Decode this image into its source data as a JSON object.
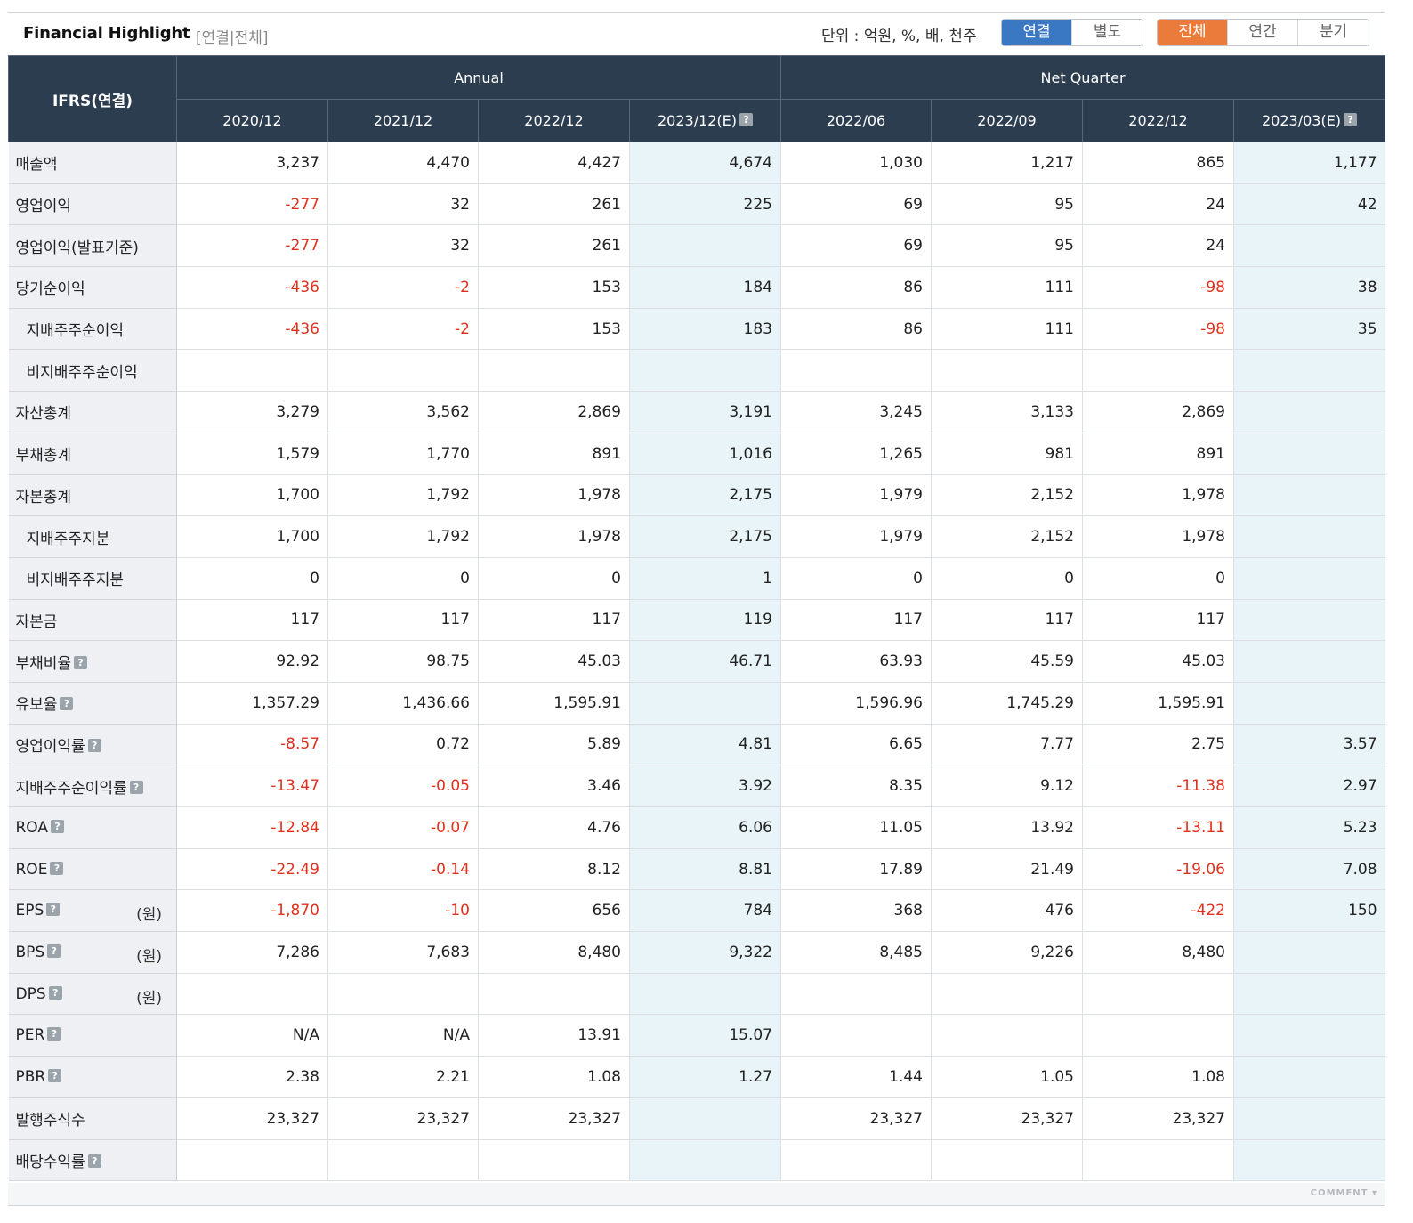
{
  "header": {
    "title": "Financial Highlight",
    "subtitle": "[연결|전체]",
    "unit_text": "단위 : 억원, %, 배, 천주",
    "scope_buttons": [
      "연결",
      "별도"
    ],
    "period_buttons": [
      "전체",
      "연간",
      "분기"
    ],
    "active_scope": "연결",
    "active_period": "전체",
    "colors": {
      "scope_active": "#3b78c3",
      "period_active": "#ea7b3a",
      "header_bg": "#2c3d50",
      "estimate_bg": "#e8f4f8",
      "negative": "#e0301e"
    }
  },
  "table": {
    "corner": "IFRS(연결)",
    "groups": [
      "Annual",
      "Net Quarter"
    ],
    "columns": [
      "2020/12",
      "2021/12",
      "2022/12",
      "2023/12(E)",
      "2022/06",
      "2022/09",
      "2022/12",
      "2023/03(E)"
    ],
    "help_icon": "?",
    "rows": [
      {
        "label": "매출액",
        "indent": false,
        "help": false,
        "unit": "",
        "values": [
          "3,237",
          "4,470",
          "4,427",
          "4,674",
          "1,030",
          "1,217",
          "865",
          "1,177"
        ]
      },
      {
        "label": "영업이익",
        "indent": false,
        "help": false,
        "unit": "",
        "values": [
          "-277",
          "32",
          "261",
          "225",
          "69",
          "95",
          "24",
          "42"
        ]
      },
      {
        "label": "영업이익(발표기준)",
        "indent": false,
        "help": false,
        "unit": "",
        "values": [
          "-277",
          "32",
          "261",
          "",
          "69",
          "95",
          "24",
          ""
        ]
      },
      {
        "label": "당기순이익",
        "indent": false,
        "help": false,
        "unit": "",
        "values": [
          "-436",
          "-2",
          "153",
          "184",
          "86",
          "111",
          "-98",
          "38"
        ]
      },
      {
        "label": "지배주주순이익",
        "indent": true,
        "help": false,
        "unit": "",
        "values": [
          "-436",
          "-2",
          "153",
          "183",
          "86",
          "111",
          "-98",
          "35"
        ]
      },
      {
        "label": "비지배주주순이익",
        "indent": true,
        "help": false,
        "unit": "",
        "values": [
          "",
          "",
          "",
          "",
          "",
          "",
          "",
          ""
        ]
      },
      {
        "label": "자산총계",
        "indent": false,
        "help": false,
        "unit": "",
        "values": [
          "3,279",
          "3,562",
          "2,869",
          "3,191",
          "3,245",
          "3,133",
          "2,869",
          ""
        ]
      },
      {
        "label": "부채총계",
        "indent": false,
        "help": false,
        "unit": "",
        "values": [
          "1,579",
          "1,770",
          "891",
          "1,016",
          "1,265",
          "981",
          "891",
          ""
        ]
      },
      {
        "label": "자본총계",
        "indent": false,
        "help": false,
        "unit": "",
        "values": [
          "1,700",
          "1,792",
          "1,978",
          "2,175",
          "1,979",
          "2,152",
          "1,978",
          ""
        ]
      },
      {
        "label": "지배주주지분",
        "indent": true,
        "help": false,
        "unit": "",
        "values": [
          "1,700",
          "1,792",
          "1,978",
          "2,175",
          "1,979",
          "2,152",
          "1,978",
          ""
        ]
      },
      {
        "label": "비지배주주지분",
        "indent": true,
        "help": false,
        "unit": "",
        "values": [
          "0",
          "0",
          "0",
          "1",
          "0",
          "0",
          "0",
          ""
        ]
      },
      {
        "label": "자본금",
        "indent": false,
        "help": false,
        "unit": "",
        "values": [
          "117",
          "117",
          "117",
          "119",
          "117",
          "117",
          "117",
          ""
        ]
      },
      {
        "label": "부채비율",
        "indent": false,
        "help": true,
        "unit": "",
        "values": [
          "92.92",
          "98.75",
          "45.03",
          "46.71",
          "63.93",
          "45.59",
          "45.03",
          ""
        ]
      },
      {
        "label": "유보율",
        "indent": false,
        "help": true,
        "unit": "",
        "values": [
          "1,357.29",
          "1,436.66",
          "1,595.91",
          "",
          "1,596.96",
          "1,745.29",
          "1,595.91",
          ""
        ]
      },
      {
        "label": "영업이익률",
        "indent": false,
        "help": true,
        "unit": "",
        "values": [
          "-8.57",
          "0.72",
          "5.89",
          "4.81",
          "6.65",
          "7.77",
          "2.75",
          "3.57"
        ]
      },
      {
        "label": "지배주주순이익률",
        "indent": false,
        "help": true,
        "unit": "",
        "values": [
          "-13.47",
          "-0.05",
          "3.46",
          "3.92",
          "8.35",
          "9.12",
          "-11.38",
          "2.97"
        ]
      },
      {
        "label": "ROA",
        "indent": false,
        "help": true,
        "unit": "",
        "values": [
          "-12.84",
          "-0.07",
          "4.76",
          "6.06",
          "11.05",
          "13.92",
          "-13.11",
          "5.23"
        ]
      },
      {
        "label": "ROE",
        "indent": false,
        "help": true,
        "unit": "",
        "values": [
          "-22.49",
          "-0.14",
          "8.12",
          "8.81",
          "17.89",
          "21.49",
          "-19.06",
          "7.08"
        ]
      },
      {
        "label": "EPS",
        "indent": false,
        "help": true,
        "unit": "(원)",
        "values": [
          "-1,870",
          "-10",
          "656",
          "784",
          "368",
          "476",
          "-422",
          "150"
        ]
      },
      {
        "label": "BPS",
        "indent": false,
        "help": true,
        "unit": "(원)",
        "values": [
          "7,286",
          "7,683",
          "8,480",
          "9,322",
          "8,485",
          "9,226",
          "8,480",
          ""
        ]
      },
      {
        "label": "DPS",
        "indent": false,
        "help": true,
        "unit": "(원)",
        "values": [
          "",
          "",
          "",
          "",
          "",
          "",
          "",
          ""
        ]
      },
      {
        "label": "PER",
        "indent": false,
        "help": true,
        "unit": "",
        "values": [
          "N/A",
          "N/A",
          "13.91",
          "15.07",
          "",
          "",
          "",
          ""
        ]
      },
      {
        "label": "PBR",
        "indent": false,
        "help": true,
        "unit": "",
        "values": [
          "2.38",
          "2.21",
          "1.08",
          "1.27",
          "1.44",
          "1.05",
          "1.08",
          ""
        ]
      },
      {
        "label": "발행주식수",
        "indent": false,
        "help": false,
        "unit": "",
        "values": [
          "23,327",
          "23,327",
          "23,327",
          "",
          "23,327",
          "23,327",
          "23,327",
          ""
        ]
      },
      {
        "label": "배당수익률",
        "indent": false,
        "help": true,
        "unit": "",
        "values": [
          "",
          "",
          "",
          "",
          "",
          "",
          "",
          ""
        ]
      }
    ]
  },
  "footer": {
    "comment_label": "COMMENT ▾"
  }
}
